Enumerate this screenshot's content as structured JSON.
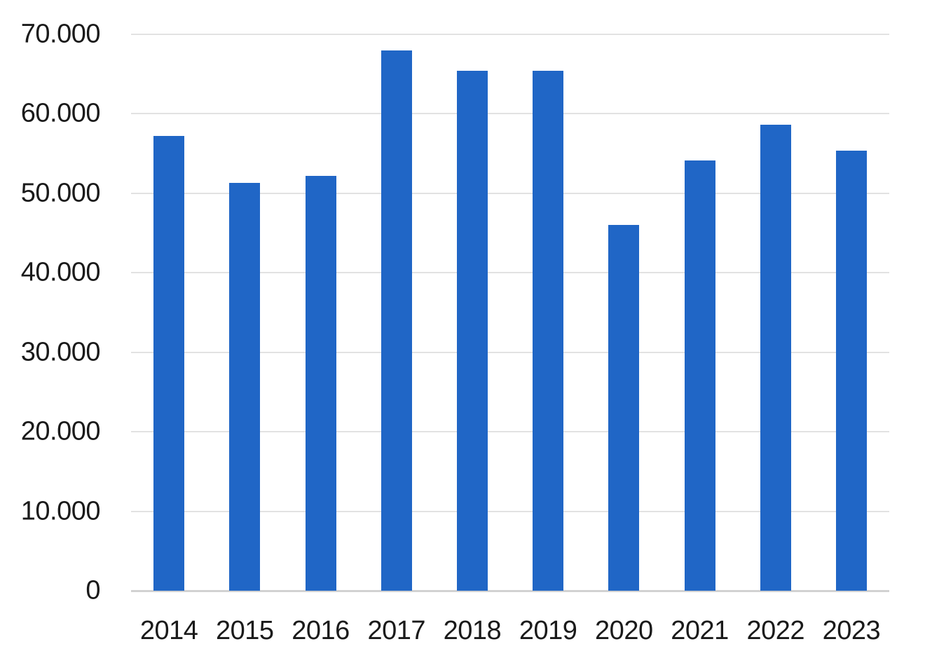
{
  "chart_data": {
    "type": "bar",
    "title": "",
    "xlabel": "",
    "ylabel": "",
    "categories": [
      "2014",
      "2015",
      "2016",
      "2017",
      "2018",
      "2019",
      "2020",
      "2021",
      "2022",
      "2023"
    ],
    "values": [
      57200,
      51300,
      52200,
      68000,
      65400,
      65400,
      46000,
      54100,
      58600,
      55400
    ],
    "ylim": [
      0,
      70000
    ],
    "y_tick_values": [
      0,
      10000,
      20000,
      30000,
      40000,
      50000,
      60000,
      70000
    ],
    "y_tick_labels": [
      "0",
      "10.000",
      "20.000",
      "30.000",
      "40.000",
      "50.000",
      "60.000",
      "70.000"
    ],
    "grid": true,
    "legend_position": "none",
    "bar_color": "#2066c6",
    "gridline_color": "#e2e2e2",
    "baseline_color": "#d2d2d2",
    "label_color": "#1a1a1a"
  }
}
